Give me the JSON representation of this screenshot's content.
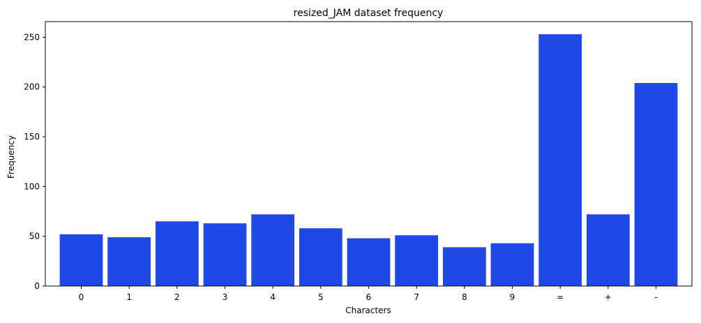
{
  "chart_data": {
    "type": "bar",
    "title": "resized_JAM dataset frequency",
    "xlabel": "Characters",
    "ylabel": "Frequency",
    "categories": [
      "0",
      "1",
      "2",
      "3",
      "4",
      "5",
      "6",
      "7",
      "8",
      "9",
      "=",
      "+",
      "-"
    ],
    "values": [
      52,
      49,
      65,
      63,
      72,
      58,
      48,
      51,
      39,
      43,
      253,
      72,
      204
    ],
    "ylim": [
      0,
      265.7
    ],
    "yticks": [
      0,
      50,
      100,
      150,
      200,
      250
    ],
    "grid": false,
    "bar_color": "#2048e6"
  }
}
